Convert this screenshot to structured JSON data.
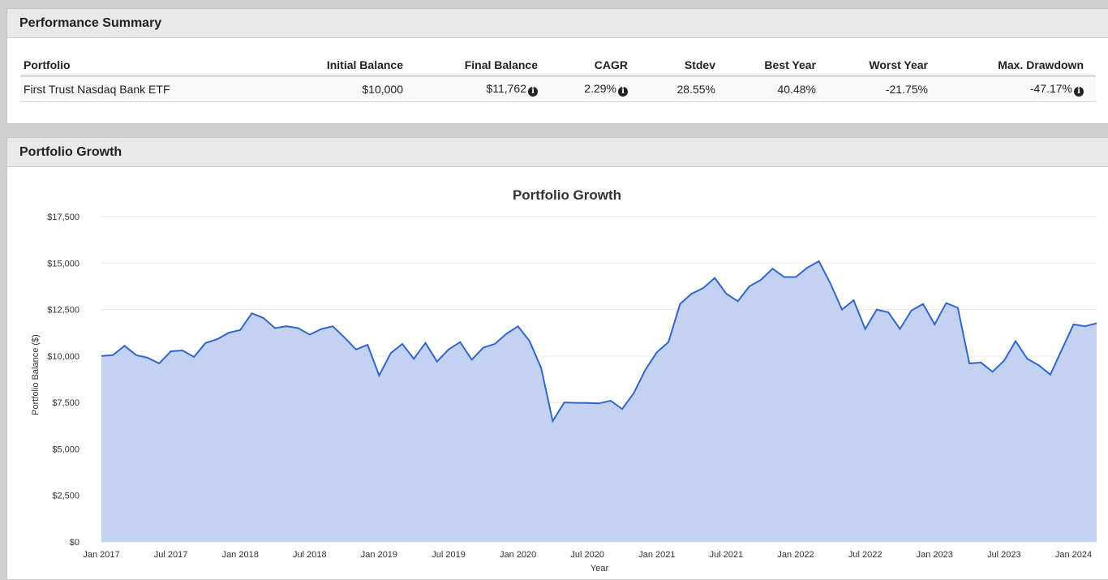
{
  "summary": {
    "title": "Performance Summary",
    "headers": [
      "Portfolio",
      "Initial Balance",
      "Final Balance",
      "CAGR",
      "Stdev",
      "Best Year",
      "Worst Year",
      "Max. Drawdown",
      ""
    ],
    "row": {
      "portfolio": "First Trust Nasdaq Bank ETF",
      "initial_balance": "$10,000",
      "final_balance": "$11,762",
      "cagr": "2.29%",
      "stdev": "28.55%",
      "best_year": "40.48%",
      "worst_year": "-21.75%",
      "max_drawdown": "-47.17%"
    }
  },
  "growth": {
    "title": "Portfolio Growth"
  },
  "colors": {
    "line": "#3366cc",
    "area": "#c2d2f0",
    "grid": "#e6e6e6"
  },
  "chart_data": {
    "type": "area",
    "title": "Portfolio Growth",
    "xlabel": "Year",
    "ylabel": "Portfolio Balance ($)",
    "ylim": [
      0,
      17500
    ],
    "yticks": [
      "$0",
      "$2,500",
      "$5,000",
      "$7,500",
      "$10,000",
      "$12,500",
      "$15,000",
      "$17,500"
    ],
    "xticks": [
      "Jan 2017",
      "Jul 2017",
      "Jan 2018",
      "Jul 2018",
      "Jan 2019",
      "Jul 2019",
      "Jan 2020",
      "Jul 2020",
      "Jan 2021",
      "Jul 2021",
      "Jan 2022",
      "Jul 2022",
      "Jan 2023",
      "Jul 2023",
      "Jan 2024"
    ],
    "grid": true,
    "series": [
      {
        "start": "Jan 2017",
        "values": [
          10000,
          10050,
          10550,
          10050,
          9900,
          9600,
          10250,
          10300,
          9950,
          10700,
          10900,
          11250,
          11400,
          12300,
          12050,
          11500,
          11600,
          11500,
          11150,
          11450,
          11600,
          11000,
          10350,
          10600,
          8950,
          10150,
          10650,
          9850,
          10700,
          9700,
          10350,
          10750,
          9800,
          10450,
          10650,
          11200,
          11600,
          10800,
          9350,
          6500,
          7500,
          7480,
          7470,
          7450,
          7600,
          7150,
          8000,
          9250,
          10200,
          10750,
          12800,
          13350,
          13650,
          14200,
          13350,
          12950,
          13750,
          14100,
          14700,
          14250,
          14250,
          14750,
          15100,
          13900,
          12500,
          13000,
          11450,
          12500,
          12350,
          11450,
          12450,
          12800,
          11700,
          12850,
          12600,
          9600,
          9650,
          9150,
          9750,
          10800,
          9850,
          9500,
          9000,
          10350,
          11700,
          11600,
          11762
        ]
      }
    ]
  }
}
